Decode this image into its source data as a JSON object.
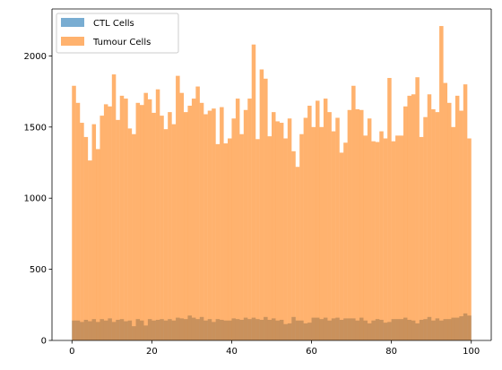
{
  "chart_data": {
    "type": "bar",
    "histogram": true,
    "bins": 100,
    "xlim": [
      -5,
      105
    ],
    "ylim": [
      0,
      2330
    ],
    "xticks": [
      0,
      20,
      40,
      60,
      80,
      100
    ],
    "yticks": [
      0,
      500,
      1000,
      1500,
      2000
    ],
    "legend_position": "top-left",
    "series": [
      {
        "name": "CTL Cells",
        "color": "#1f77b4",
        "alpha": 0.6,
        "values": [
          140,
          140,
          130,
          145,
          135,
          150,
          130,
          150,
          140,
          155,
          130,
          145,
          150,
          135,
          140,
          100,
          150,
          140,
          105,
          150,
          140,
          145,
          150,
          140,
          150,
          140,
          160,
          155,
          150,
          175,
          160,
          150,
          165,
          140,
          150,
          130,
          150,
          145,
          140,
          140,
          155,
          150,
          145,
          160,
          150,
          160,
          150,
          145,
          165,
          145,
          155,
          140,
          145,
          115,
          120,
          165,
          140,
          140,
          120,
          125,
          160,
          160,
          150,
          160,
          140,
          155,
          160,
          145,
          155,
          155,
          155,
          140,
          160,
          140,
          120,
          140,
          150,
          145,
          125,
          130,
          150,
          150,
          150,
          160,
          145,
          140,
          120,
          145,
          150,
          165,
          140,
          155,
          140,
          150,
          150,
          160,
          160,
          170,
          190,
          175
        ]
      },
      {
        "name": "Tumour Cells",
        "color": "#ff7f0e",
        "alpha": 0.6,
        "values": [
          1790,
          1670,
          1530,
          1430,
          1265,
          1520,
          1345,
          1580,
          1660,
          1645,
          1870,
          1550,
          1720,
          1700,
          1490,
          1450,
          1670,
          1655,
          1740,
          1695,
          1600,
          1765,
          1580,
          1485,
          1605,
          1520,
          1860,
          1740,
          1605,
          1650,
          1700,
          1785,
          1670,
          1590,
          1615,
          1630,
          1380,
          1640,
          1385,
          1420,
          1560,
          1700,
          1450,
          1620,
          1700,
          2080,
          1415,
          1905,
          1840,
          1435,
          1605,
          1540,
          1530,
          1420,
          1560,
          1330,
          1220,
          1450,
          1565,
          1650,
          1500,
          1685,
          1500,
          1700,
          1605,
          1470,
          1565,
          1320,
          1390,
          1620,
          1790,
          1625,
          1620,
          1440,
          1560,
          1400,
          1395,
          1470,
          1420,
          1845,
          1400,
          1440,
          1440,
          1645,
          1720,
          1730,
          1850,
          1430,
          1570,
          1730,
          1625,
          1605,
          2210,
          1810,
          1670,
          1500,
          1720,
          1615,
          1800,
          1420
        ]
      }
    ]
  }
}
